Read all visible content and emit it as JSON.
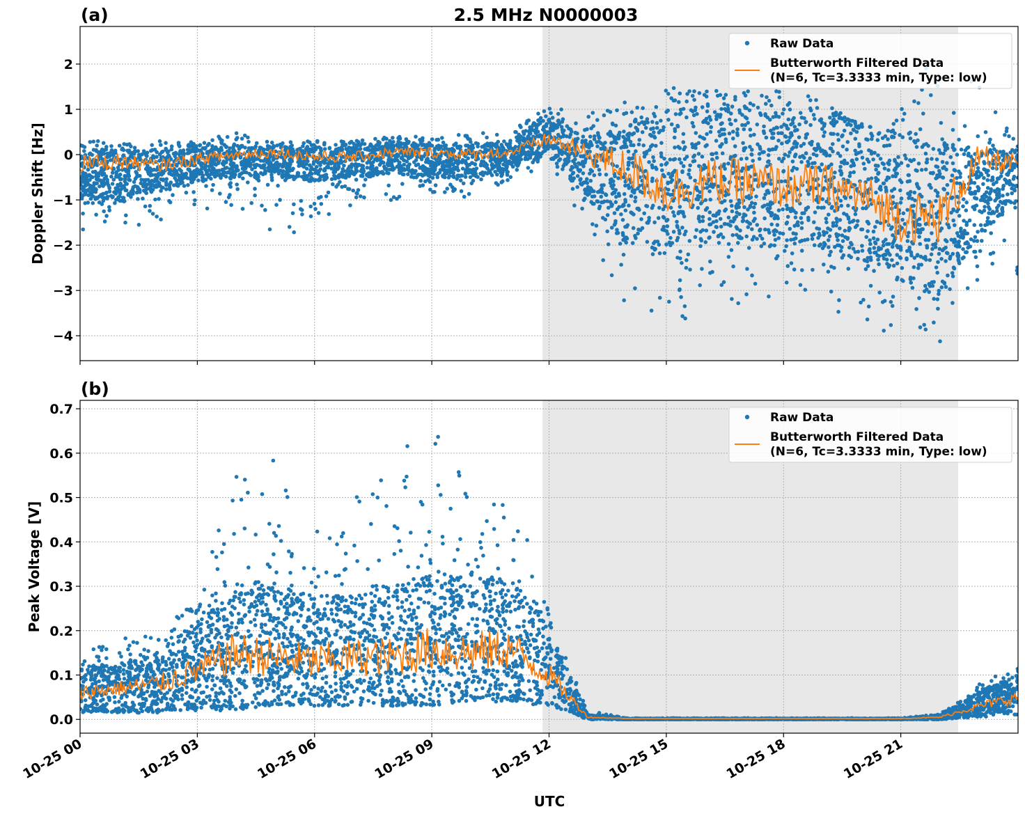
{
  "chart_data": [
    {
      "type": "scatter",
      "panel_label": "(a)",
      "title": "2.5 MHz N0000003",
      "xlabel": "",
      "ylabel": "Doppler Shift [Hz]",
      "xlim_hours": [
        0,
        24
      ],
      "ylim": [
        -4.55,
        2.83
      ],
      "yticks": [
        2,
        1,
        0,
        -1,
        -2,
        -3,
        -4
      ],
      "ytick_labels": [
        "2",
        "1",
        "0",
        "−1",
        "−2",
        "−3",
        "−4"
      ],
      "grid": true,
      "legend": "top-right",
      "shaded_interval": [
        "10-25 11:50",
        "10-25 22:28"
      ],
      "shaded_color": "#e8e8e8",
      "hour": [
        0,
        1,
        2,
        3,
        4,
        5,
        6,
        7,
        8,
        9,
        10,
        11,
        12,
        13,
        14,
        15,
        16,
        17,
        18,
        19,
        20,
        21,
        22,
        23,
        24
      ],
      "series": [
        {
          "name": "Raw Data",
          "kind": "points",
          "color": "#1f77b4",
          "dense_low": [
            -1.0,
            -1.0,
            -0.8,
            -0.6,
            -0.5,
            -0.5,
            -0.6,
            -0.5,
            -0.4,
            -0.5,
            -0.5,
            -0.3,
            0.0,
            -1.0,
            -2.0,
            -2.2,
            -2.0,
            -2.0,
            -2.0,
            -2.0,
            -2.2,
            -2.8,
            -3.0,
            -1.8,
            -1.0
          ],
          "dense_high": [
            0.1,
            0.1,
            0.05,
            0.1,
            0.2,
            0.15,
            0.15,
            0.15,
            0.3,
            0.2,
            0.2,
            0.3,
            0.9,
            0.3,
            0.6,
            0.9,
            1.0,
            1.0,
            0.9,
            0.9,
            0.7,
            0.3,
            0.3,
            0.1,
            0.1
          ],
          "min": [
            -1.9,
            -1.6,
            -1.5,
            -1.2,
            -1.2,
            -2.0,
            -1.5,
            -1.1,
            -1.1,
            -0.9,
            -1.0,
            -0.6,
            -0.2,
            -1.8,
            -3.5,
            -3.7,
            -3.6,
            -3.3,
            -3.3,
            -3.3,
            -3.8,
            -4.0,
            -4.2,
            -3.0,
            -3.1
          ],
          "max": [
            0.3,
            0.3,
            0.3,
            0.3,
            0.5,
            0.3,
            0.3,
            0.3,
            0.4,
            0.4,
            0.5,
            0.5,
            1.1,
            0.9,
            1.2,
            1.5,
            1.5,
            1.4,
            1.4,
            1.3,
            0.5,
            1.0,
            2.5,
            1.6,
            0.2
          ]
        },
        {
          "name": "Butterworth Filtered Data",
          "name_line2": "(N=6, Tc=3.3333 min, Type: low)",
          "kind": "line",
          "color": "#ff7f0e",
          "values": [
            -0.2,
            -0.15,
            -0.25,
            -0.1,
            0.0,
            0.05,
            -0.05,
            -0.05,
            0.05,
            0.05,
            0.0,
            0.05,
            0.35,
            0.0,
            -0.3,
            -0.8,
            -0.6,
            -0.6,
            -0.7,
            -0.7,
            -0.9,
            -1.4,
            -1.4,
            -0.1,
            -0.2
          ]
        }
      ]
    },
    {
      "type": "scatter",
      "panel_label": "(b)",
      "xlabel": "UTC",
      "ylabel": "Peak Voltage [V]",
      "xlim_hours": [
        0,
        24
      ],
      "ylim": [
        -0.031,
        0.719
      ],
      "yticks": [
        0.0,
        0.1,
        0.2,
        0.3,
        0.4,
        0.5,
        0.6,
        0.7
      ],
      "ytick_labels": [
        "0.0",
        "0.1",
        "0.2",
        "0.3",
        "0.4",
        "0.5",
        "0.6",
        "0.7"
      ],
      "xticks_hours": [
        0,
        3,
        6,
        9,
        12,
        15,
        18,
        21
      ],
      "xtick_labels": [
        "10-25 00",
        "10-25 03",
        "10-25 06",
        "10-25 09",
        "10-25 12",
        "10-25 15",
        "10-25 18",
        "10-25 21"
      ],
      "grid": true,
      "legend": "top-right",
      "shaded_interval": [
        "10-25 11:50",
        "10-25 22:28"
      ],
      "hour": [
        0,
        1,
        2,
        3,
        4,
        5,
        6,
        7,
        8,
        9,
        10,
        11,
        12,
        13,
        14,
        15,
        16,
        17,
        18,
        19,
        20,
        21,
        22,
        23,
        24
      ],
      "series": [
        {
          "name": "Raw Data",
          "kind": "points",
          "color": "#1f77b4",
          "dense_low": [
            0.02,
            0.02,
            0.02,
            0.03,
            0.03,
            0.04,
            0.04,
            0.04,
            0.04,
            0.04,
            0.05,
            0.05,
            0.04,
            0.0,
            0,
            0,
            0,
            0,
            0,
            0,
            0,
            0,
            0,
            0.01,
            0.02
          ],
          "dense_high": [
            0.12,
            0.12,
            0.15,
            0.22,
            0.3,
            0.3,
            0.28,
            0.28,
            0.3,
            0.33,
            0.33,
            0.32,
            0.2,
            0.01,
            0.002,
            0.002,
            0.002,
            0.002,
            0.002,
            0.002,
            0.002,
            0.002,
            0.01,
            0.06,
            0.1
          ],
          "min": [
            0.015,
            0.015,
            0.015,
            0.02,
            0.02,
            0.03,
            0.03,
            0.03,
            0.03,
            0.03,
            0.04,
            0.04,
            0.03,
            0,
            0,
            0,
            0,
            0,
            0,
            0,
            0,
            0,
            0,
            0.005,
            0.01
          ],
          "max": [
            0.15,
            0.18,
            0.2,
            0.27,
            0.57,
            0.6,
            0.42,
            0.5,
            0.58,
            0.68,
            0.55,
            0.56,
            0.25,
            0.02,
            0.003,
            0.003,
            0.003,
            0.003,
            0.003,
            0.003,
            0.003,
            0.003,
            0.012,
            0.08,
            0.12
          ]
        },
        {
          "name": "Butterworth Filtered Data",
          "name_line2": "(N=6, Tc=3.3333 min, Type: low)",
          "kind": "line",
          "color": "#ff7f0e",
          "values": [
            0.06,
            0.07,
            0.08,
            0.11,
            0.15,
            0.14,
            0.13,
            0.14,
            0.14,
            0.16,
            0.15,
            0.16,
            0.1,
            0.005,
            0.002,
            0.002,
            0.002,
            0.002,
            0.002,
            0.002,
            0.002,
            0.002,
            0.005,
            0.03,
            0.05
          ]
        }
      ]
    }
  ]
}
